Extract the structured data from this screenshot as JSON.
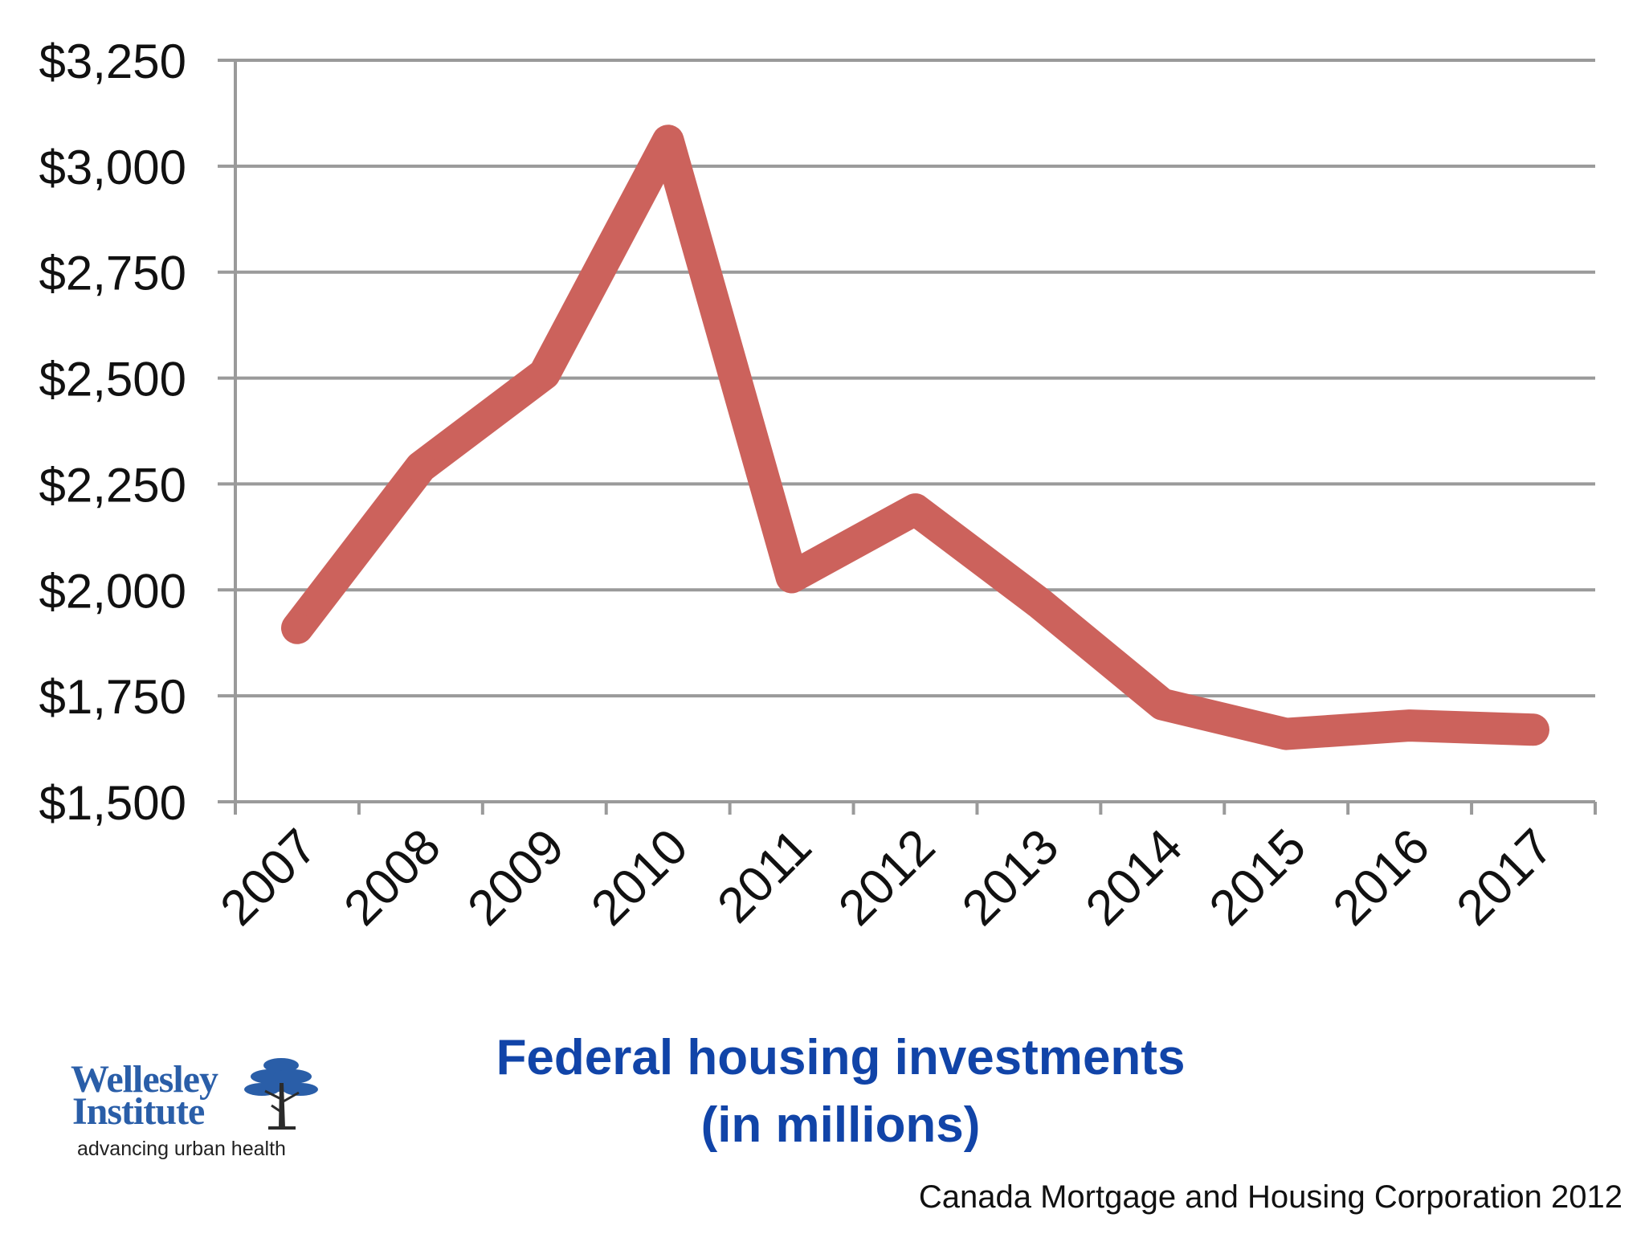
{
  "chart_data": {
    "type": "line",
    "title": "Federal housing investments\n(in millions)",
    "title_lines": [
      "Federal housing investments",
      "(in millions)"
    ],
    "categories": [
      "2007",
      "2008",
      "2009",
      "2010",
      "2011",
      "2012",
      "2013",
      "2014",
      "2015",
      "2016",
      "2017"
    ],
    "series": [
      {
        "values": [
          1910,
          2290,
          2510,
          3060,
          2030,
          2190,
          1970,
          1730,
          1660,
          1680,
          1670
        ]
      }
    ],
    "y_ticks": [
      "$1,500",
      "$1,750",
      "$2,000",
      "$2,250",
      "$2,500",
      "$2,750",
      "$3,000",
      "$3,250"
    ],
    "y_tick_values": [
      1500,
      1750,
      2000,
      2250,
      2500,
      2750,
      3000,
      3250
    ],
    "ylim": [
      1500,
      3250
    ],
    "grid": true,
    "legend": "none",
    "line_color": "#cc625c",
    "grid_color": "#9a9a9a"
  },
  "logo": {
    "line1": "Wellesley",
    "line2": "Institute",
    "tagline": "advancing urban health",
    "icon": "tree-icon",
    "color": "#2a5ea8"
  },
  "source": "Canada Mortgage and Housing Corporation 2012"
}
